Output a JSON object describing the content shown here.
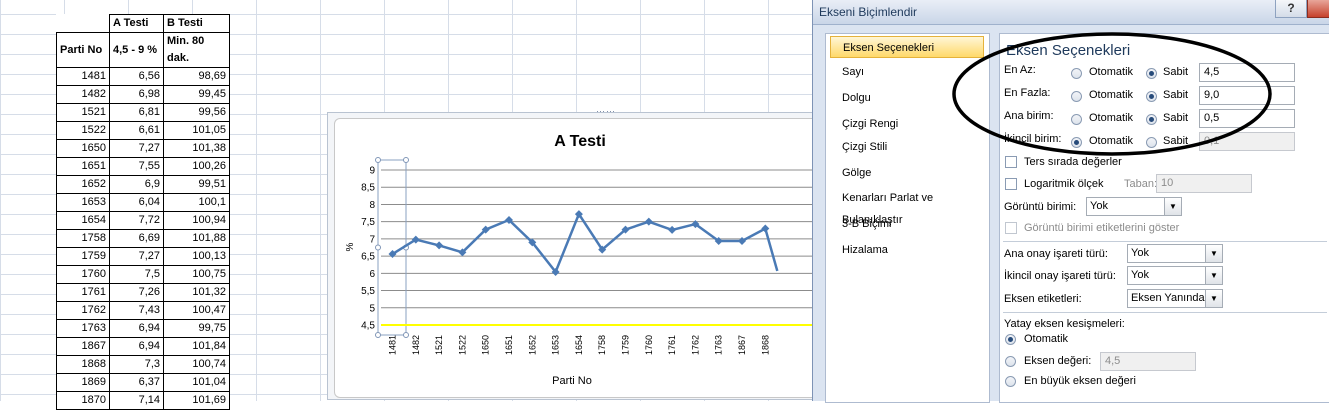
{
  "sheet": {
    "headers": {
      "col_a": "A Testi",
      "col_b": "B Testi"
    },
    "subheaders": {
      "col0": "Parti No",
      "col_a": "4,5 - 9 %",
      "col_b": "Min. 80 dak."
    },
    "rows": [
      [
        "1481",
        "6,56",
        "98,69"
      ],
      [
        "1482",
        "6,98",
        "99,45"
      ],
      [
        "1521",
        "6,81",
        "99,56"
      ],
      [
        "1522",
        "6,61",
        "101,05"
      ],
      [
        "1650",
        "7,27",
        "101,38"
      ],
      [
        "1651",
        "7,55",
        "100,26"
      ],
      [
        "1652",
        "6,9",
        "99,51"
      ],
      [
        "1653",
        "6,04",
        "100,1"
      ],
      [
        "1654",
        "7,72",
        "100,94"
      ],
      [
        "1758",
        "6,69",
        "101,88"
      ],
      [
        "1759",
        "7,27",
        "100,13"
      ],
      [
        "1760",
        "7,5",
        "100,75"
      ],
      [
        "1761",
        "7,26",
        "101,32"
      ],
      [
        "1762",
        "7,43",
        "100,47"
      ],
      [
        "1763",
        "6,94",
        "99,75"
      ],
      [
        "1867",
        "6,94",
        "101,84"
      ],
      [
        "1868",
        "7,3",
        "100,74"
      ],
      [
        "1869",
        "6,37",
        "101,04"
      ],
      [
        "1870",
        "7,14",
        "101,69"
      ]
    ]
  },
  "chart_data": {
    "type": "line",
    "title": "A Testi",
    "xlabel": "Parti No",
    "ylabel": "%",
    "ylim": [
      4.5,
      9.0
    ],
    "yticks": [
      "9",
      "8,5",
      "8",
      "7,5",
      "7",
      "6,5",
      "6",
      "5,5",
      "5",
      "4,5"
    ],
    "categories": [
      "1481",
      "1482",
      "1521",
      "1522",
      "1650",
      "1651",
      "1652",
      "1653",
      "1654",
      "1758",
      "1759",
      "1760",
      "1761",
      "1762",
      "1763",
      "1867",
      "1868"
    ],
    "values": [
      6.56,
      6.98,
      6.81,
      6.61,
      7.27,
      7.55,
      6.9,
      6.04,
      7.72,
      6.69,
      7.27,
      7.5,
      7.26,
      7.43,
      6.94,
      6.94,
      7.3
    ],
    "clipped_next_value": 6.37,
    "colors": {
      "line": "#4a7ab5",
      "axis": "#ffff00"
    }
  },
  "dialog": {
    "title": "Ekseni Biçimlendir",
    "help": "?",
    "nav": [
      "Eksen Seçenekleri",
      "Sayı",
      "Dolgu",
      "Çizgi Rengi",
      "Çizgi Stili",
      "Gölge",
      "Kenarları Parlat ve Bulanıklaştır",
      "3-B Biçimi",
      "Hizalama"
    ],
    "section_title": "Eksen Seçenekleri",
    "rows": [
      {
        "label": "En Az:",
        "auto": "Otomatik",
        "fixed": "Sabit",
        "value": "4,5"
      },
      {
        "label": "En Fazla:",
        "auto": "Otomatik",
        "fixed": "Sabit",
        "value": "9,0"
      },
      {
        "label": "Ana birim:",
        "auto": "Otomatik",
        "fixed": "Sabit",
        "value": "0,5"
      },
      {
        "label": "İkincil birim:",
        "auto": "Otomatik",
        "fixed": "Sabit",
        "value": "0,1"
      }
    ],
    "reverse": "Ters sırada değerler",
    "log": "Logaritmik ölçek",
    "base_label": "Taban:",
    "base_value": "10",
    "display_units_label": "Görüntü birimi:",
    "display_units_value": "Yok",
    "show_units_label": "Görüntü birimi etiketlerini göster",
    "major_tick_label": "Ana onay işareti türü:",
    "major_tick_value": "Yok",
    "minor_tick_label": "İkincil onay işareti türü:",
    "minor_tick_value": "Yok",
    "axis_labels_label": "Eksen etiketleri:",
    "axis_labels_value": "Eksen Yanında",
    "cross_title": "Yatay eksen kesişmeleri:",
    "cross_auto": "Otomatik",
    "cross_value_label": "Eksen değeri:",
    "cross_value": "4,5",
    "cross_max": "En büyük eksen değeri"
  }
}
